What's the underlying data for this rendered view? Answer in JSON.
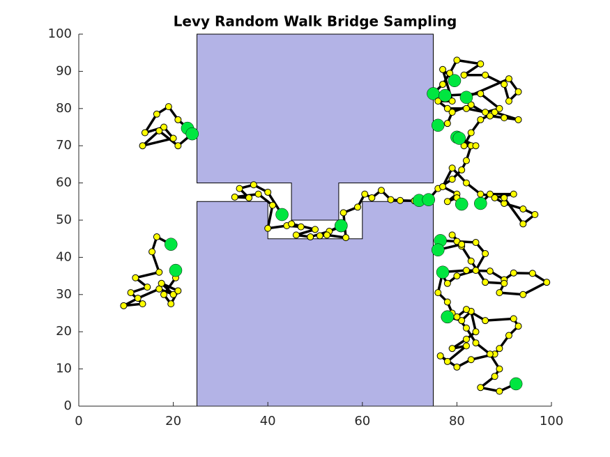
{
  "chart_data": {
    "type": "walks",
    "title": "Levy Random Walk Bridge Sampling",
    "xlim": [
      0,
      100
    ],
    "ylim": [
      0,
      100
    ],
    "xticks": [
      0,
      20,
      40,
      60,
      80,
      100
    ],
    "yticks": [
      0,
      10,
      20,
      30,
      40,
      50,
      60,
      70,
      80,
      90,
      100
    ],
    "obstacle_color": "#b3b3e6",
    "line_color": "#000000",
    "point_color": "#ffff00",
    "endpoint_color": "#00e640",
    "obstacles": [
      {
        "x": [
          25,
          75,
          75,
          55,
          55,
          45,
          45,
          25
        ],
        "y": [
          100,
          100,
          60,
          60,
          50,
          50,
          60,
          60
        ]
      },
      {
        "x": [
          25,
          40,
          40,
          60,
          60,
          75,
          75,
          25
        ],
        "y": [
          55,
          55,
          45,
          45,
          55,
          55,
          0,
          0
        ]
      }
    ],
    "series": [
      {
        "x": [
          23,
          21,
          19,
          16.5,
          14,
          18,
          20,
          13.5,
          17,
          21,
          24
        ],
        "y": [
          74.7,
          77,
          80.5,
          78.5,
          73.5,
          75,
          72,
          70,
          74,
          70,
          73.2
        ]
      },
      {
        "x": [
          19.5,
          16.5,
          15.5,
          17,
          12,
          14.5,
          11,
          13.5,
          9.5,
          12.5,
          17,
          20,
          17.5,
          21,
          19.5,
          18,
          20.5,
          20.5
        ],
        "y": [
          43.5,
          45.5,
          41.5,
          36,
          34.5,
          32,
          30.5,
          27.5,
          27,
          29,
          31.5,
          30,
          33,
          31,
          27.5,
          30,
          34.5,
          36.5
        ]
      },
      {
        "x": [
          43,
          40,
          37,
          34,
          36,
          33,
          38,
          41,
          40,
          44,
          47,
          45,
          50,
          46,
          49,
          53,
          55,
          55.5
        ],
        "y": [
          51.5,
          57.5,
          59.5,
          58.5,
          56,
          56.2,
          57,
          54,
          47.8,
          48.5,
          48.2,
          49,
          47.5,
          46,
          45.5,
          47,
          48,
          48.5
        ]
      },
      {
        "x": [
          55.5,
          51,
          52.5,
          56.5,
          56,
          59,
          60.5,
          62,
          64,
          66,
          68,
          71,
          72
        ],
        "y": [
          48.5,
          45.8,
          46,
          45.3,
          52,
          53.5,
          57,
          56,
          58,
          55.5,
          55.3,
          55.2,
          55.3
        ]
      },
      {
        "x": [
          74,
          76,
          79,
          81,
          82,
          83,
          80
        ],
        "y": [
          55.5,
          58.5,
          61,
          63.5,
          66,
          70,
          72.3
        ]
      },
      {
        "x": [
          76,
          78,
          79,
          83,
          87,
          90,
          93,
          88,
          85,
          83,
          81.5,
          84,
          80.5
        ],
        "y": [
          75.5,
          76,
          79,
          81,
          78,
          77.5,
          77,
          79,
          77,
          73.5,
          70,
          70,
          72
        ]
      },
      {
        "x": [
          75,
          77,
          78.5,
          80,
          85,
          81.5,
          86,
          90,
          91,
          93,
          91,
          82
        ],
        "y": [
          84,
          86.5,
          89.5,
          93,
          92,
          89,
          89,
          86.5,
          82,
          84.5,
          88,
          83
        ]
      },
      {
        "x": [
          79.5,
          77,
          79,
          76,
          78,
          82,
          86,
          89,
          85,
          77.5
        ],
        "y": [
          87.5,
          90.5,
          82,
          82,
          80,
          80,
          79,
          80,
          84,
          83.5
        ]
      },
      {
        "x": [
          85,
          87,
          92,
          88,
          90,
          94,
          96.5,
          94,
          90,
          85,
          82,
          79,
          77,
          80,
          78,
          80,
          81
        ],
        "y": [
          54.5,
          57,
          57,
          56,
          54.5,
          53,
          51.5,
          49,
          56,
          57,
          60,
          64,
          59,
          57,
          55,
          56,
          54.3
        ]
      },
      {
        "x": [
          76.5,
          80,
          84,
          86,
          84,
          80,
          78,
          76.5,
          82,
          87,
          90,
          92,
          96,
          99,
          94,
          89,
          90,
          86,
          83,
          81,
          79,
          81,
          76
        ],
        "y": [
          44.5,
          44.3,
          44,
          41,
          36.5,
          35,
          33,
          36,
          36.5,
          36.3,
          34,
          35.8,
          35.7,
          33.3,
          30,
          30.5,
          33,
          33.3,
          39,
          43,
          46,
          43.5,
          42
        ]
      },
      {
        "x": [
          78,
          81,
          83,
          84,
          82,
          79,
          82,
          78,
          76.5,
          80,
          83,
          88,
          89,
          91,
          93,
          92,
          86,
          82,
          80,
          82,
          84,
          87,
          89,
          88,
          85,
          89,
          92.5
        ],
        "y": [
          24,
          23,
          25.5,
          20,
          18,
          15.5,
          16.2,
          12,
          13.5,
          10.5,
          12.5,
          14,
          15.5,
          19,
          21.5,
          23.5,
          23,
          26,
          24,
          21,
          17,
          14,
          10,
          8,
          5,
          4,
          6
        ]
      },
      {
        "x": [
          77,
          76,
          78,
          79,
          78
        ],
        "y": [
          36,
          30.5,
          28,
          25,
          24
        ]
      }
    ]
  }
}
